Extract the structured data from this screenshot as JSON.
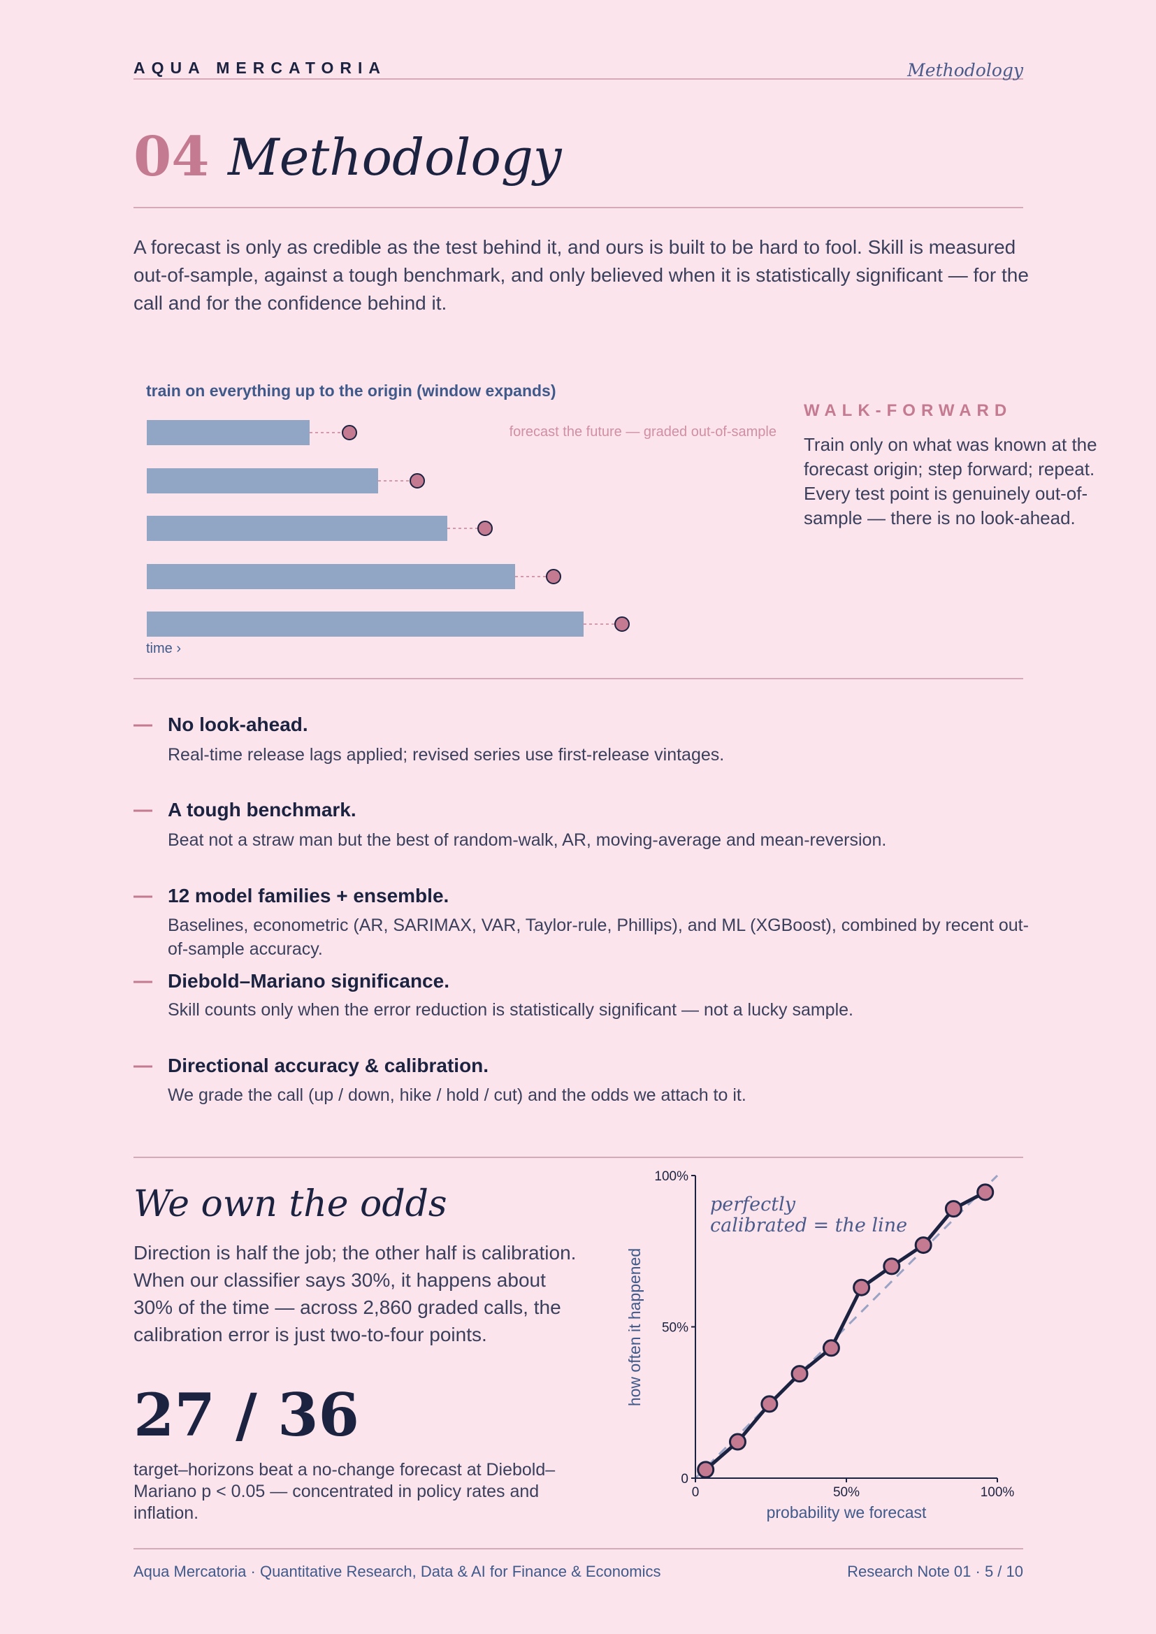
{
  "header": {
    "brand": "AQUA MERCATORIA",
    "section": "Methodology"
  },
  "title": {
    "number": "04",
    "text": "Methodology"
  },
  "intro": "A forecast is only as credible as the test behind it, and ours is built to be hard to fool. Skill is measured out-of-sample, against a tough benchmark, and only believed when it is statistically significant — for the call and for the confidence behind it.",
  "walk_forward": {
    "caption": "train on everything up to the origin (window expands)",
    "future_label": "forecast the future — graded out-of-sample",
    "time_label": "time ›",
    "heading": "WALK-FORWARD",
    "body": "Train only on what was known at the forecast origin; step forward; repeat. Every test point is genuinely out-of-sample — there is no look-ahead."
  },
  "principles": [
    {
      "title": "No look-ahead.",
      "text": "Real-time release lags applied; revised series use first-release vintages."
    },
    {
      "title": "A tough benchmark.",
      "text": "Beat not a straw man but the best of random-walk, AR, moving-average and mean-reversion."
    },
    {
      "title": "12 model families + ensemble.",
      "text": "Baselines, econometric (AR, SARIMAX, VAR, Taylor-rule, Phillips), and ML (XGBoost), combined by recent out-of-sample accuracy."
    },
    {
      "title": "Diebold–Mariano significance.",
      "text": "Skill counts only when the error reduction is statistically significant — not a lucky sample."
    },
    {
      "title": "Directional accuracy & calibration.",
      "text": "We grade the call (up / down, hike / hold / cut) and the odds we attach to it."
    }
  ],
  "odds": {
    "heading": "We own the odds",
    "body": "Direction is half the job; the other half is calibration. When our classifier says 30%, it happens about 30% of the time — across 2,860 graded calls, the calibration error is just two-to-four points.",
    "stat": "27 / 36",
    "stat_caption": "target–horizons beat a no-change forecast at Diebold–Mariano p < 0.05 — concentrated in policy rates and inflation."
  },
  "chart_data": {
    "type": "line",
    "xlabel": "probability we forecast",
    "ylabel": "how often it happened",
    "annotation": [
      "perfectly",
      "calibrated = the line"
    ],
    "x": [
      3.4,
      14,
      24.5,
      34.5,
      45,
      55,
      65,
      75.5,
      85.5,
      96
    ],
    "values": [
      2.8,
      12,
      24.5,
      34.5,
      43,
      63,
      70,
      77,
      89,
      94.5
    ],
    "color": "#c47a90",
    "xlim": [
      0,
      100
    ],
    "ylim": [
      0,
      100
    ],
    "xticks": [
      0,
      {
        "value": 50,
        "label": "50%"
      },
      {
        "value": 100,
        "label": "100%"
      }
    ],
    "yticks": [
      0,
      {
        "value": 50,
        "label": "50%"
      },
      {
        "value": 100,
        "label": "100%"
      }
    ]
  },
  "footer": {
    "left": "Aqua Mercatoria · Quantitative Research, Data & AI for Finance & Economics",
    "right": "Research Note 01 · 5 / 10"
  }
}
